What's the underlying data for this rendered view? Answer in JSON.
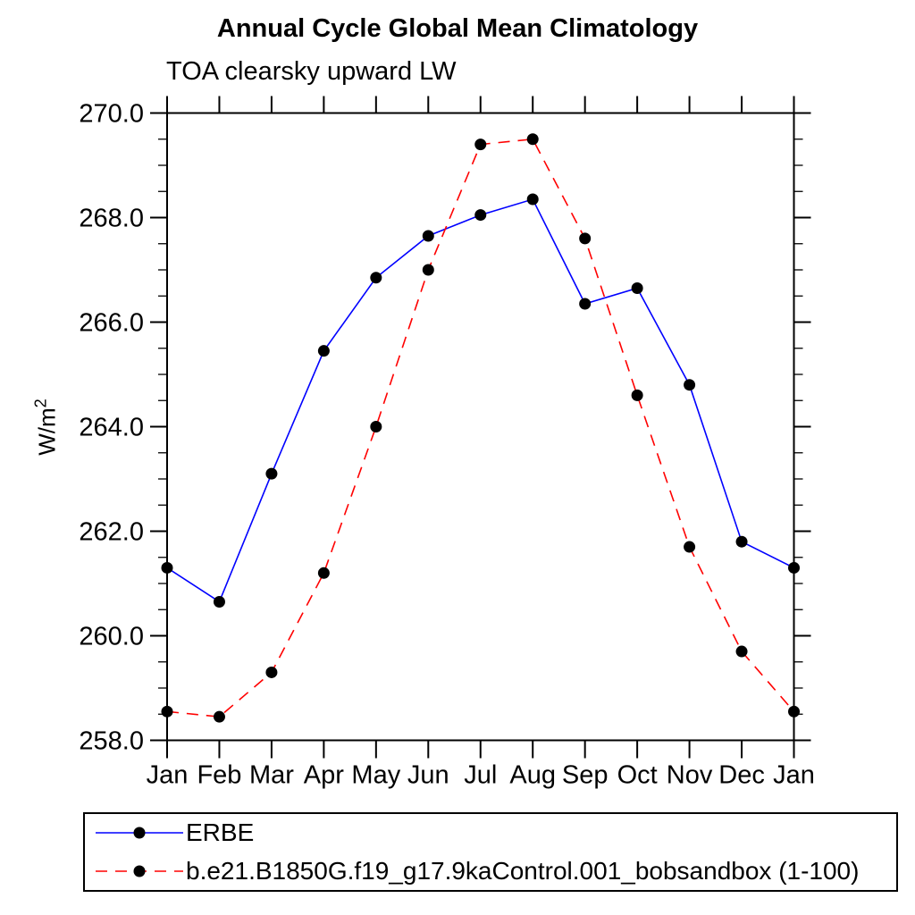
{
  "page": {
    "title": "Annual Cycle Global Mean Climatology",
    "subtitle": "TOA clearsky upward LW"
  },
  "chart_data": {
    "type": "line",
    "title": "Annual Cycle Global Mean Climatology",
    "subtitle": "TOA clearsky upward LW",
    "ylabel_base": "W/m",
    "ylabel_sup": "2",
    "x_labels": [
      "Jan",
      "Feb",
      "Mar",
      "Apr",
      "May",
      "Jun",
      "Jul",
      "Aug",
      "Sep",
      "Oct",
      "Nov",
      "Dec",
      "Jan"
    ],
    "ylim": [
      258.0,
      270.0
    ],
    "y_tick_major": 2.0,
    "y_tick_minor": 0.5,
    "y_tick_decimals": 1,
    "grid": false,
    "legend_position": "bottom",
    "frame_color": "#000000",
    "marker_color": "#000000",
    "series": [
      {
        "name": "ERBE",
        "color": "#0000ff",
        "line_style": "solid",
        "marker": "filled-circle",
        "values": [
          261.3,
          260.65,
          263.1,
          265.45,
          266.85,
          267.65,
          268.05,
          268.35,
          266.35,
          266.65,
          264.8,
          261.8,
          261.3
        ]
      },
      {
        "name": "b.e21.B1850G.f19_g17.9kaControl.001_bobsandbox (1-100)",
        "color": "#ff0000",
        "line_style": "dashed",
        "marker": "filled-circle",
        "values": [
          258.55,
          258.45,
          259.3,
          261.2,
          264.0,
          267.0,
          269.4,
          269.5,
          267.6,
          264.6,
          261.7,
          259.7,
          258.55
        ]
      }
    ]
  }
}
